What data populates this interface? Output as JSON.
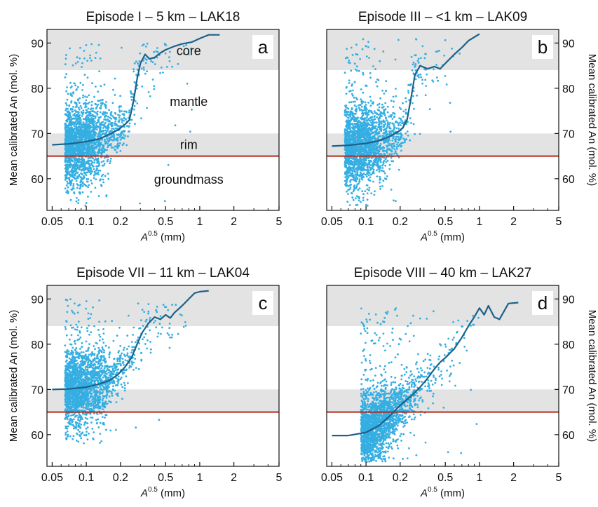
{
  "figure": {
    "shared_ylabel": "Mean calibrated An (mol. %)",
    "shared_xlabel_base": "A",
    "shared_xlabel_exp": "0.5",
    "shared_xlabel_unit": " (mm)",
    "colors": {
      "scatter": "#35aee2",
      "median_line": "#1c6189",
      "groundmass_line": "#b12a1a",
      "zone_band": "#e3e3e3",
      "background": "#ffffff"
    },
    "zone_labels": {
      "core": "core",
      "mantle": "mantle",
      "rim": "rim",
      "groundmass": "groundmass"
    },
    "zones": [
      {
        "name": "core",
        "y_range": [
          84,
          95
        ],
        "shaded": true
      },
      {
        "name": "mantle",
        "y_range": [
          70,
          84
        ],
        "shaded": false
      },
      {
        "name": "rim",
        "y_range": [
          65,
          70
        ],
        "shaded": true
      }
    ],
    "groundmass_threshold": 65
  },
  "chart_data": [
    {
      "type": "scatter",
      "panel_letter": "a",
      "title": "Episode I – 5 km – LAK18",
      "xlabel": "A0.5 (mm)",
      "ylabel": "Mean calibrated An (mol. %)",
      "x_scale": "log",
      "xlim": [
        0.045,
        5
      ],
      "ylim": [
        53,
        93
      ],
      "x_ticks": [
        0.05,
        0.1,
        0.2,
        0.5,
        1,
        2,
        5
      ],
      "x_tick_labels": [
        "0.05",
        "0.1",
        "0.2",
        "0.5",
        "1",
        "2",
        "5"
      ],
      "y_ticks": [
        60,
        70,
        80,
        90
      ],
      "y_tick_labels": [
        "60",
        "70",
        "80",
        "90"
      ],
      "y_axis_side": "left",
      "show_zone_labels": true,
      "median_line": {
        "x": [
          0.05,
          0.07,
          0.1,
          0.13,
          0.16,
          0.19,
          0.22,
          0.24,
          0.26,
          0.28,
          0.3,
          0.33,
          0.36,
          0.4,
          0.45,
          0.5,
          0.6,
          0.7,
          0.85,
          1.0,
          1.2,
          1.5
        ],
        "y": [
          67.5,
          67.7,
          68.2,
          68.8,
          69.8,
          70.8,
          72.0,
          73.0,
          77.0,
          82.0,
          85.5,
          87.5,
          86.5,
          86.8,
          87.8,
          88.5,
          89.3,
          89.8,
          90.2,
          91.0,
          91.8,
          91.8
        ]
      },
      "scatter_cloud": {
        "x_range": [
          0.05,
          0.9
        ],
        "dense_center": {
          "x": 0.065,
          "y": 67
        },
        "y_min": 54,
        "y_max": 90,
        "point_count": 2200
      }
    },
    {
      "type": "scatter",
      "panel_letter": "b",
      "title": "Episode III – <1 km – LAK09",
      "xlabel": "A0.5 (mm)",
      "ylabel": "Mean calibrated An (mol. %)",
      "x_scale": "log",
      "xlim": [
        0.045,
        5
      ],
      "ylim": [
        53,
        93
      ],
      "x_ticks": [
        0.05,
        0.1,
        0.2,
        0.5,
        1,
        2,
        5
      ],
      "x_tick_labels": [
        "0.05",
        "0.1",
        "0.2",
        "0.5",
        "1",
        "2",
        "5"
      ],
      "y_ticks": [
        60,
        70,
        80,
        90
      ],
      "y_tick_labels": [
        "60",
        "70",
        "80",
        "90"
      ],
      "y_axis_side": "right",
      "show_zone_labels": false,
      "median_line": {
        "x": [
          0.05,
          0.07,
          0.1,
          0.13,
          0.16,
          0.19,
          0.21,
          0.23,
          0.25,
          0.27,
          0.3,
          0.35,
          0.4,
          0.45,
          0.5,
          0.6,
          0.7,
          0.8,
          1.0
        ],
        "y": [
          67.2,
          67.4,
          67.8,
          68.4,
          69.3,
          70.3,
          71.2,
          73.0,
          78.0,
          83.0,
          85.0,
          84.3,
          84.8,
          84.3,
          85.5,
          87.5,
          89.0,
          90.5,
          92.0
        ]
      },
      "scatter_cloud": {
        "x_range": [
          0.05,
          0.8
        ],
        "dense_center": {
          "x": 0.065,
          "y": 66
        },
        "y_min": 54,
        "y_max": 91,
        "point_count": 2200
      }
    },
    {
      "type": "scatter",
      "panel_letter": "c",
      "title": "Episode VII – 11 km – LAK04",
      "xlabel": "A0.5 (mm)",
      "ylabel": "Mean calibrated An (mol. %)",
      "x_scale": "log",
      "xlim": [
        0.045,
        5
      ],
      "ylim": [
        53,
        93
      ],
      "x_ticks": [
        0.05,
        0.1,
        0.2,
        0.5,
        1,
        2,
        5
      ],
      "x_tick_labels": [
        "0.05",
        "0.1",
        "0.2",
        "0.5",
        "1",
        "2",
        "5"
      ],
      "y_ticks": [
        60,
        70,
        80,
        90
      ],
      "y_tick_labels": [
        "60",
        "70",
        "80",
        "90"
      ],
      "y_axis_side": "left",
      "show_zone_labels": false,
      "median_line": {
        "x": [
          0.05,
          0.07,
          0.1,
          0.13,
          0.16,
          0.19,
          0.22,
          0.25,
          0.28,
          0.31,
          0.35,
          0.4,
          0.45,
          0.5,
          0.55,
          0.6,
          0.7,
          0.8,
          0.9,
          1.0,
          1.2
        ],
        "y": [
          70.0,
          70.1,
          70.5,
          71.2,
          72.0,
          73.3,
          75.0,
          77.0,
          80.0,
          82.5,
          84.5,
          86.0,
          85.5,
          86.5,
          85.8,
          87.0,
          88.5,
          90.0,
          91.3,
          91.6,
          91.8
        ]
      },
      "scatter_cloud": {
        "x_range": [
          0.05,
          0.9
        ],
        "dense_center": {
          "x": 0.065,
          "y": 70
        },
        "y_min": 58,
        "y_max": 90,
        "point_count": 2200
      }
    },
    {
      "type": "scatter",
      "panel_letter": "d",
      "title": "Episode VIII – 40 km – LAK27",
      "xlabel": "A0.5 (mm)",
      "ylabel": "Mean calibrated An (mol. %)",
      "x_scale": "log",
      "xlim": [
        0.045,
        5
      ],
      "ylim": [
        53,
        93
      ],
      "x_ticks": [
        0.05,
        0.1,
        0.2,
        0.5,
        1,
        2,
        5
      ],
      "x_tick_labels": [
        "0.05",
        "0.1",
        "0.2",
        "0.5",
        "1",
        "2",
        "5"
      ],
      "y_ticks": [
        60,
        70,
        80,
        90
      ],
      "y_tick_labels": [
        "60",
        "70",
        "80",
        "90"
      ],
      "y_axis_side": "right",
      "show_zone_labels": false,
      "median_line": {
        "x": [
          0.05,
          0.07,
          0.1,
          0.13,
          0.16,
          0.2,
          0.25,
          0.3,
          0.35,
          0.4,
          0.45,
          0.5,
          0.6,
          0.7,
          0.8,
          0.9,
          1.0,
          1.1,
          1.2,
          1.35,
          1.5,
          1.8,
          2.2
        ],
        "y": [
          59.8,
          59.8,
          60.5,
          62.0,
          64.0,
          66.5,
          68.5,
          70.5,
          72.5,
          74.5,
          76.0,
          77.0,
          79.0,
          81.5,
          84.0,
          86.0,
          88.0,
          86.5,
          88.5,
          86.0,
          85.5,
          89.0,
          89.2
        ]
      },
      "scatter_cloud": {
        "x_range": [
          0.05,
          1.1
        ],
        "dense_center": {
          "x": 0.09,
          "y": 62
        },
        "y_min": 54,
        "y_max": 88,
        "point_count": 2200
      }
    }
  ]
}
